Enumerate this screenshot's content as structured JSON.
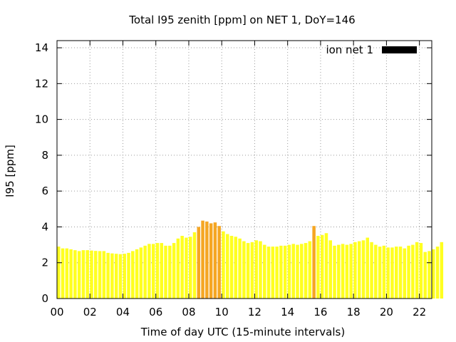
{
  "chart_data": {
    "type": "bar",
    "title": "Total I95 zenith [ppm] on NET 1, DoY=146",
    "xlabel": "Time of day UTC (15-minute intervals)",
    "ylabel": "I95 [ppm]",
    "xlim": [
      0,
      22.75
    ],
    "ylim": [
      0,
      14.4
    ],
    "x_ticks": [
      "00",
      "02",
      "04",
      "06",
      "08",
      "10",
      "12",
      "14",
      "16",
      "18",
      "20",
      "22"
    ],
    "y_ticks": [
      "0",
      "2",
      "4",
      "6",
      "8",
      "10",
      "12",
      "14"
    ],
    "grid": true,
    "legend_position": "top-right",
    "series": [
      {
        "name": "ion net 1",
        "legend_color": "#000000",
        "bar_color_normal": "#ffff20",
        "bar_color_high": "#f5a623",
        "high_threshold": 3.9,
        "interval_hours": 0.25,
        "values": [
          2.9,
          2.8,
          2.8,
          2.75,
          2.7,
          2.65,
          2.7,
          2.7,
          2.68,
          2.66,
          2.65,
          2.65,
          2.55,
          2.52,
          2.5,
          2.48,
          2.5,
          2.55,
          2.65,
          2.75,
          2.85,
          2.95,
          3.05,
          3.05,
          3.1,
          3.1,
          2.95,
          2.95,
          3.1,
          3.35,
          3.5,
          3.4,
          3.45,
          3.7,
          4.0,
          4.35,
          4.3,
          4.2,
          4.25,
          4.05,
          3.75,
          3.6,
          3.5,
          3.45,
          3.35,
          3.2,
          3.1,
          3.15,
          3.25,
          3.2,
          3.0,
          2.9,
          2.9,
          2.9,
          2.95,
          2.95,
          3.0,
          3.05,
          3.0,
          3.05,
          3.1,
          3.2,
          4.05,
          3.5,
          3.55,
          3.65,
          3.25,
          2.95,
          3.0,
          3.05,
          3.0,
          3.05,
          3.15,
          3.2,
          3.25,
          3.4,
          3.15,
          3.0,
          2.9,
          2.95,
          2.85,
          2.85,
          2.9,
          2.9,
          2.8,
          2.95,
          3.0,
          3.15,
          3.1,
          2.6,
          2.65,
          2.75,
          2.9,
          3.15
        ]
      }
    ]
  }
}
